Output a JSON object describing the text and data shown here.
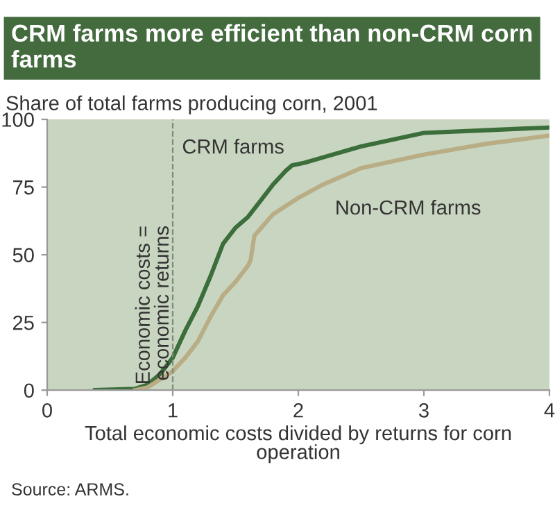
{
  "chart_data": {
    "type": "line",
    "title": "CRM farms more efficient than non-CRM corn farms",
    "ylabel": "Share of total farms producing corn, 2001",
    "xlabel": "Total economic costs divided by returns for corn operation",
    "annotations": [
      "Source: ARMS."
    ],
    "series": [
      {
        "name": "CRM farms",
        "color": "#3b6e3a",
        "x": [
          0.38,
          0.7,
          0.8,
          0.9,
          1.0,
          1.1,
          1.2,
          1.3,
          1.4,
          1.5,
          1.6,
          1.7,
          1.8,
          1.9,
          1.95,
          2.05,
          2.2,
          2.5,
          3.0,
          3.5,
          4.0
        ],
        "values": [
          0,
          0.5,
          2,
          6,
          12,
          22,
          31,
          42,
          54,
          60,
          64,
          70,
          76,
          81,
          83,
          84,
          86,
          90,
          95,
          96,
          97
        ]
      },
      {
        "name": "Non-CRM farms",
        "color": "#b9ad85",
        "x": [
          0.7,
          0.8,
          0.9,
          1.0,
          1.1,
          1.2,
          1.3,
          1.4,
          1.5,
          1.6,
          1.62,
          1.65,
          1.8,
          2.0,
          2.2,
          2.5,
          3.0,
          3.5,
          4.0
        ],
        "values": [
          0,
          1,
          4,
          7,
          12,
          18,
          27,
          35,
          40,
          46,
          48,
          57,
          65,
          71,
          76,
          82,
          87,
          91,
          94
        ]
      }
    ],
    "xlim": [
      0,
      4
    ],
    "xticks": [
      0,
      1,
      2,
      3,
      4
    ],
    "ylim": [
      0,
      100
    ],
    "yticks": [
      0,
      25,
      50,
      75,
      100
    ],
    "ref_lines": [
      {
        "axis": "x",
        "value": 1,
        "label": "Economic costs =\neconomic returns",
        "color": "#7f8a7a",
        "line_style": "dashed"
      }
    ],
    "grid": false,
    "legend": false,
    "marker": "none",
    "line_style": "solid"
  }
}
